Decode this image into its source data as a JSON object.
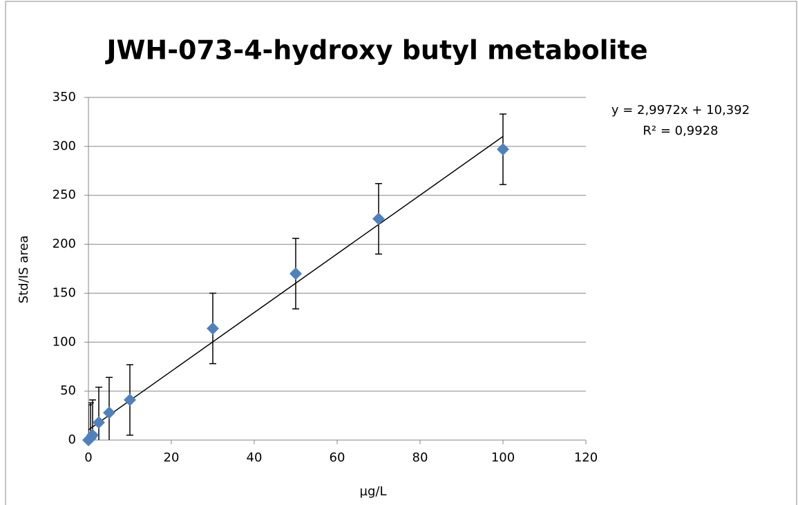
{
  "chart_data": {
    "type": "scatter",
    "title": "JWH-073-4-hydroxy butyl metabolite",
    "xlabel": "µg/L",
    "ylabel": "Std/IS area",
    "x": [
      0,
      0.5,
      1,
      2.5,
      5,
      10,
      30,
      50,
      70,
      100
    ],
    "series": [
      {
        "name": "Std/IS area",
        "color": "#4f81bd",
        "values": [
          0,
          2,
          5,
          18,
          28,
          41,
          114,
          170,
          226,
          297
        ],
        "errors": [
          36,
          36,
          36,
          36,
          36,
          36,
          36,
          36,
          36,
          36
        ]
      }
    ],
    "xlim": [
      0,
      120
    ],
    "xticks": [
      0,
      20,
      40,
      60,
      80,
      100,
      120
    ],
    "ylim": [
      0,
      350
    ],
    "yticks": [
      0,
      50,
      100,
      150,
      200,
      250,
      300,
      350
    ],
    "grid": true,
    "trendline": {
      "label": "y = 2,9972x + 10,392",
      "r2_label": "R² = 0,9928",
      "slope": 2.9972,
      "intercept": 10.392,
      "color": "#000000"
    }
  }
}
